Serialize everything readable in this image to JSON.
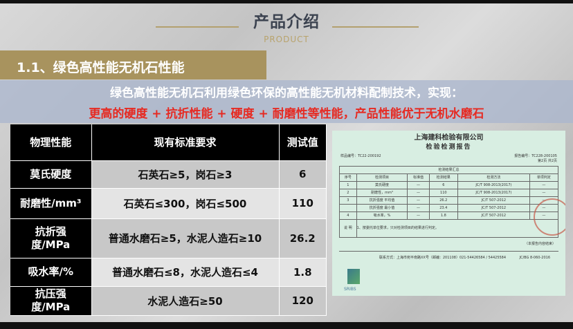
{
  "header": {
    "title": "产品介绍",
    "subtitle": "PRODUCT"
  },
  "section": {
    "title": "1.1、绿色高性能无机石性能"
  },
  "intro": {
    "line1": "绿色高性能无机石利用绿色环保的高性能无机材料配制技术，实现：",
    "line2": "更高的硬度 + 抗折性能 + 硬度 + 耐磨性等性能，产品性能优于无机水磨石"
  },
  "table": {
    "headers": [
      "物理性能",
      "现有标准要求",
      "测试值"
    ],
    "rows": [
      {
        "property": "莫氏硬度",
        "standard": "石英石≥5，岗石≥3",
        "value": "6"
      },
      {
        "property": "耐磨性/mm³",
        "standard": "石英石≤300，岗石≤500",
        "value": "110"
      },
      {
        "property": "抗折强度/MPa",
        "standard": "普通水磨石≥5，水泥人造石≥10",
        "value": "26.2"
      },
      {
        "property": "吸水率/%",
        "standard": "普通水磨石≤8，水泥人造石≤4",
        "value": "1.8"
      },
      {
        "property": "抗压强度/MPa",
        "standard": "水泥人造石≥50",
        "value": "120"
      }
    ]
  },
  "report": {
    "company": "上海建科检验有限公司",
    "title": "检验检测报告",
    "report_no": "报告编号：TC228-200105",
    "page": "第2页 共2页",
    "sample_no": "样品编号：TC22-200192",
    "summary": "检测结果汇总",
    "cols": [
      "序号",
      "检测项目",
      "标准值",
      "检测结果",
      "检测方法",
      "单项判定"
    ],
    "rows": [
      [
        "1",
        "莫氏硬度",
        "—",
        "6",
        "JC/T 908-2013(2017)",
        "—"
      ],
      [
        "2",
        "耐磨性，mm³",
        "—",
        "110",
        "JC/T 908-2013(2017)",
        "—"
      ],
      [
        "3",
        "抗折强度 平均值",
        "—",
        "26.2",
        "JC/T 507-2012",
        "—"
      ],
      [
        "",
        "抗折强度 最小值",
        "—",
        "23.4",
        "JC/T 507-2012",
        "—"
      ],
      [
        "4",
        "吸水率，%",
        "—",
        "1.8",
        "JC/T 507-2012",
        "—"
      ]
    ],
    "note_label": "说 明",
    "note": "1、按委托单位要求，只对检测项目的结果进行判定。",
    "seal_note": "（本报告内容结束）",
    "contact": "联系方式：上海市宛平南路XX号（邮编：201108）021-54426584 / 54425584",
    "doc_code": "JC/BG 8-060-2016",
    "logo_text": "SRIBS"
  },
  "colors": {
    "gold": "#a8935e",
    "red": "#e62a22",
    "band": "#aab6cd"
  }
}
